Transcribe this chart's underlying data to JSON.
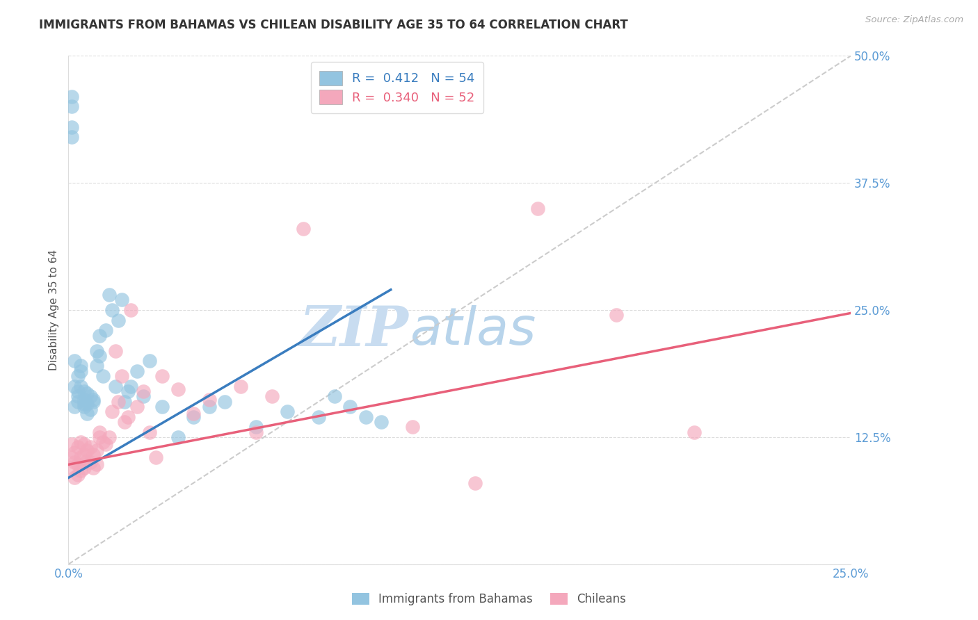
{
  "title": "IMMIGRANTS FROM BAHAMAS VS CHILEAN DISABILITY AGE 35 TO 64 CORRELATION CHART",
  "source": "Source: ZipAtlas.com",
  "ylabel": "Disability Age 35 to 64",
  "xlim": [
    0.0,
    0.25
  ],
  "ylim": [
    0.0,
    0.5
  ],
  "yticks": [
    0.0,
    0.125,
    0.25,
    0.375,
    0.5
  ],
  "ytick_labels": [
    "",
    "12.5%",
    "25.0%",
    "37.5%",
    "50.0%"
  ],
  "xticks": [
    0.0,
    0.05,
    0.1,
    0.15,
    0.2,
    0.25
  ],
  "xtick_labels": [
    "0.0%",
    "",
    "",
    "",
    "",
    "25.0%"
  ],
  "R_bahamas": 0.412,
  "N_bahamas": 54,
  "R_chilean": 0.34,
  "N_chilean": 52,
  "blue_color": "#93c4e0",
  "pink_color": "#f4a8bc",
  "blue_line_color": "#3a7dbf",
  "pink_line_color": "#e8607a",
  "diagonal_color": "#cccccc",
  "watermark_text": "ZIPatlas",
  "watermark_color": "#ddeef8",
  "background_color": "#ffffff",
  "grid_color": "#dddddd",
  "title_color": "#333333",
  "axis_label_color": "#555555",
  "tick_label_color": "#5b9bd5",
  "legend_label_color": "#555555",
  "blue_line_x0": 0.0,
  "blue_line_y0": 0.085,
  "blue_line_x1": 0.103,
  "blue_line_y1": 0.27,
  "pink_line_x0": 0.0,
  "pink_line_y0": 0.098,
  "pink_line_x1": 0.25,
  "pink_line_y1": 0.247,
  "bahamas_x": [
    0.001,
    0.001,
    0.001,
    0.001,
    0.002,
    0.002,
    0.002,
    0.003,
    0.003,
    0.003,
    0.003,
    0.004,
    0.004,
    0.004,
    0.005,
    0.005,
    0.005,
    0.005,
    0.006,
    0.006,
    0.006,
    0.007,
    0.007,
    0.008,
    0.008,
    0.009,
    0.009,
    0.01,
    0.01,
    0.011,
    0.012,
    0.013,
    0.014,
    0.015,
    0.016,
    0.017,
    0.018,
    0.019,
    0.02,
    0.022,
    0.024,
    0.026,
    0.03,
    0.035,
    0.04,
    0.045,
    0.05,
    0.06,
    0.07,
    0.08,
    0.085,
    0.09,
    0.095,
    0.1
  ],
  "bahamas_y": [
    0.43,
    0.46,
    0.42,
    0.45,
    0.2,
    0.155,
    0.175,
    0.165,
    0.185,
    0.16,
    0.17,
    0.19,
    0.175,
    0.195,
    0.158,
    0.162,
    0.17,
    0.155,
    0.148,
    0.168,
    0.158,
    0.165,
    0.152,
    0.16,
    0.162,
    0.21,
    0.195,
    0.205,
    0.225,
    0.185,
    0.23,
    0.265,
    0.25,
    0.175,
    0.24,
    0.26,
    0.16,
    0.17,
    0.175,
    0.19,
    0.165,
    0.2,
    0.155,
    0.125,
    0.145,
    0.155,
    0.16,
    0.135,
    0.15,
    0.145,
    0.165,
    0.155,
    0.145,
    0.14
  ],
  "chilean_x": [
    0.001,
    0.001,
    0.001,
    0.002,
    0.002,
    0.002,
    0.003,
    0.003,
    0.003,
    0.004,
    0.004,
    0.004,
    0.005,
    0.005,
    0.005,
    0.006,
    0.006,
    0.007,
    0.007,
    0.008,
    0.008,
    0.009,
    0.009,
    0.01,
    0.01,
    0.011,
    0.012,
    0.013,
    0.014,
    0.015,
    0.016,
    0.017,
    0.018,
    0.019,
    0.02,
    0.022,
    0.024,
    0.026,
    0.028,
    0.03,
    0.035,
    0.04,
    0.045,
    0.055,
    0.06,
    0.065,
    0.075,
    0.11,
    0.13,
    0.15,
    0.175,
    0.2
  ],
  "chilean_y": [
    0.118,
    0.105,
    0.095,
    0.11,
    0.1,
    0.085,
    0.115,
    0.098,
    0.088,
    0.12,
    0.105,
    0.092,
    0.118,
    0.108,
    0.095,
    0.112,
    0.102,
    0.115,
    0.1,
    0.108,
    0.095,
    0.112,
    0.098,
    0.125,
    0.13,
    0.12,
    0.118,
    0.125,
    0.15,
    0.21,
    0.16,
    0.185,
    0.14,
    0.145,
    0.25,
    0.155,
    0.17,
    0.13,
    0.105,
    0.185,
    0.172,
    0.148,
    0.162,
    0.175,
    0.13,
    0.165,
    0.33,
    0.135,
    0.08,
    0.35,
    0.245,
    0.13
  ]
}
